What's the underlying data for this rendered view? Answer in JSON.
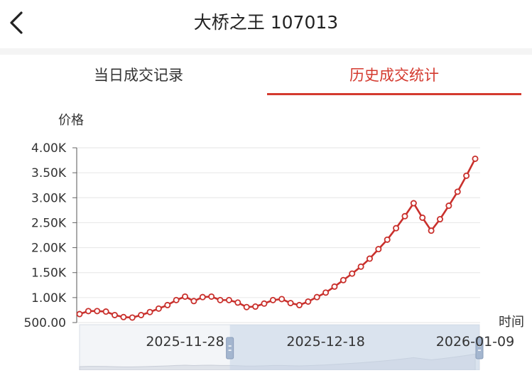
{
  "header": {
    "title": "大桥之王 107013"
  },
  "tabs": [
    {
      "label": "当日成交记录",
      "active": false
    },
    {
      "label": "历史成交统计",
      "active": true
    }
  ],
  "colors": {
    "accent": "#d43a2f",
    "line": "#c9302c",
    "grid": "#e6e6e6"
  },
  "chart_data": {
    "type": "line",
    "ylabel": "价格",
    "xlabel": "时间",
    "y_ticks": [
      "4.00K",
      "3.50K",
      "3.00K",
      "2.50K",
      "2.00K",
      "1.50K",
      "1.00K",
      "500.00"
    ],
    "ylim": [
      500,
      4000
    ],
    "x_ticks": [
      {
        "label": "2025-11-28",
        "index": 12
      },
      {
        "label": "2025-12-18",
        "index": 28
      },
      {
        "label": "2026-01-09",
        "index": 45
      }
    ],
    "values": [
      670,
      730,
      730,
      720,
      650,
      610,
      600,
      650,
      710,
      780,
      850,
      950,
      1020,
      930,
      1010,
      1020,
      950,
      950,
      900,
      810,
      820,
      880,
      950,
      970,
      890,
      850,
      920,
      1010,
      1100,
      1220,
      1350,
      1480,
      1620,
      1780,
      1970,
      2160,
      2390,
      2630,
      2890,
      2600,
      2340,
      2570,
      2840,
      3120,
      3440,
      3780
    ],
    "grid": true,
    "data_zoom": {
      "start_fraction": 0.38,
      "end_fraction": 1.0
    }
  }
}
